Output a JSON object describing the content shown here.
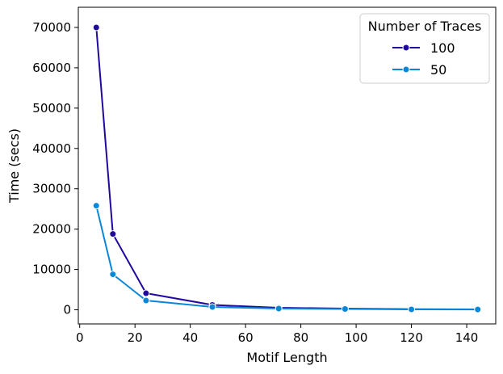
{
  "chart_data": {
    "type": "line",
    "xlabel": "Motif Length",
    "ylabel": "Time (secs)",
    "xlim": [
      -0.5,
      150.5
    ],
    "ylim": [
      -3500,
      75000
    ],
    "xticks": [
      0,
      20,
      40,
      60,
      80,
      100,
      120,
      140
    ],
    "yticks": [
      0,
      10000,
      20000,
      30000,
      40000,
      50000,
      60000,
      70000
    ],
    "grid": false,
    "legend": {
      "title": "Number of Traces",
      "placement": "top-right"
    },
    "x": [
      6,
      12,
      24,
      48,
      72,
      96,
      120,
      144
    ],
    "series": [
      {
        "name": "100",
        "color": "#1f0a9e",
        "values": [
          70000,
          18800,
          4100,
          1200,
          500,
          300,
          150,
          100
        ]
      },
      {
        "name": "50",
        "color": "#0a86d6",
        "values": [
          25800,
          8800,
          2300,
          700,
          300,
          200,
          100,
          80
        ]
      }
    ]
  }
}
